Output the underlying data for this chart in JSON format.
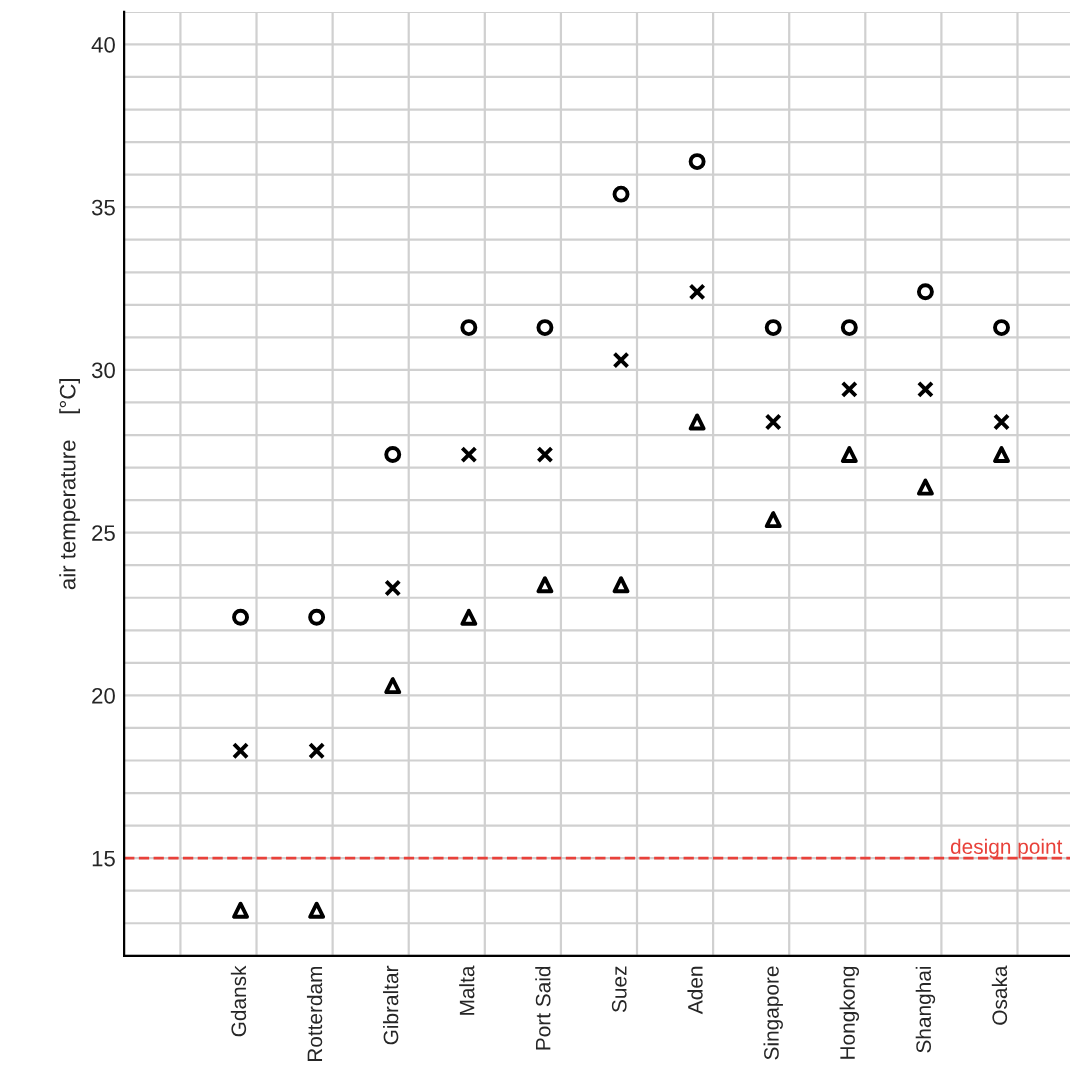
{
  "chart_data": {
    "type": "scatter",
    "ylabel": "air temperature    [°C]",
    "categories": [
      "Gdansk",
      "Rotterdam",
      "Gibraltar",
      "Malta",
      "Port Said",
      "Suez",
      "Aden",
      "Singapore",
      "Hongkong",
      "Shanghai",
      "Osaka"
    ],
    "series": [
      {
        "color": "#000000",
        "marker": "circle",
        "values": [
          22.4,
          22.4,
          27.4,
          31.3,
          31.3,
          35.4,
          36.4,
          31.3,
          31.3,
          32.4,
          31.3
        ]
      },
      {
        "color": "#000000",
        "marker": "cross",
        "values": [
          18.3,
          18.3,
          23.3,
          27.4,
          27.4,
          30.3,
          32.4,
          28.4,
          29.4,
          29.4,
          28.4
        ]
      },
      {
        "color": "#000000",
        "marker": "triangle",
        "values": [
          13.4,
          13.4,
          20.3,
          22.4,
          23.4,
          23.4,
          28.4,
          25.4,
          27.4,
          26.4,
          27.4
        ]
      }
    ],
    "ylim": [
      12,
      41
    ],
    "yticks": [
      15,
      20,
      25,
      30,
      35,
      40
    ],
    "ref_lines": [
      {
        "axis": "y",
        "value": 15,
        "label": "design point",
        "color": "#e8413a",
        "line_style": "dashed"
      }
    ],
    "grid": true,
    "legend": false
  }
}
